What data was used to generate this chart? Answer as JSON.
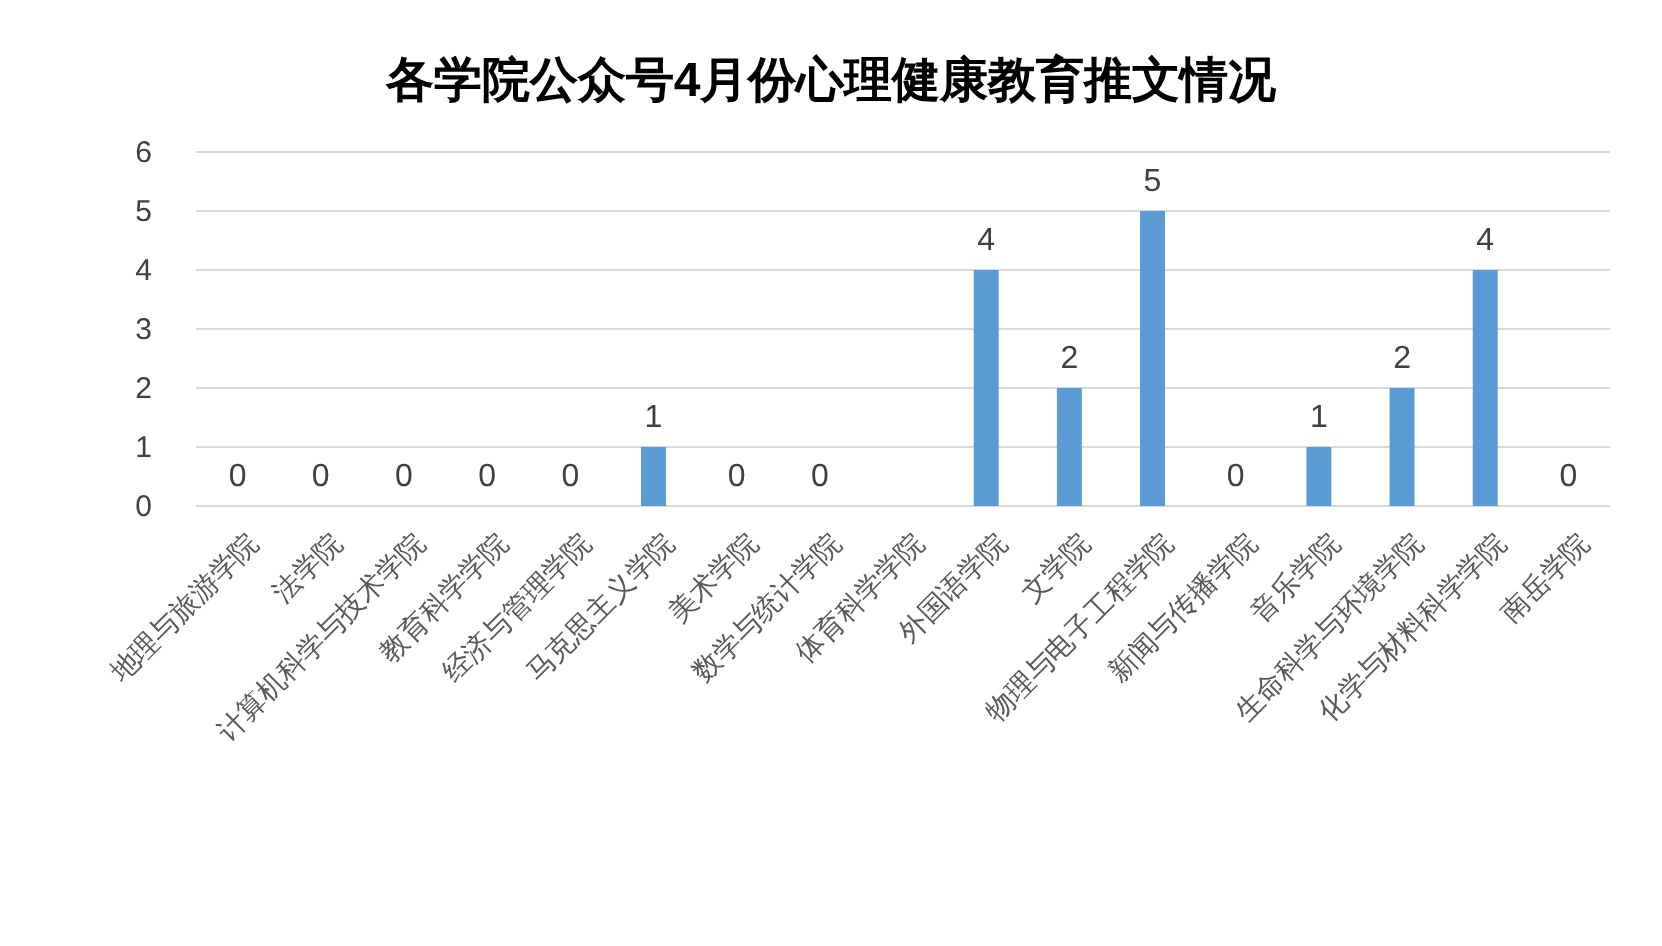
{
  "chart_data": {
    "type": "bar",
    "title": "各学院公众号4月份心理健康教育推文情况",
    "categories": [
      "地理与旅游学院",
      "法学院",
      "计算机科学与技术学院",
      "教育科学学院",
      "经济与管理学院",
      "马克思主义学院",
      "美术学院",
      "数学与统计学院",
      "体育科学学院",
      "外国语学院",
      "文学院",
      "物理与电子工程学院",
      "新闻与传播学院",
      "音乐学院",
      "生命科学与环境学院",
      "化学与材料科学学院",
      "南岳学院"
    ],
    "values": [
      0,
      0,
      0,
      0,
      0,
      1,
      0,
      0,
      0,
      4,
      2,
      5,
      0,
      1,
      2,
      4,
      0
    ],
    "value_labels": [
      "0",
      "0",
      "0",
      "0",
      "0",
      "1",
      "0",
      "0",
      null,
      "4",
      "2",
      "5",
      "0",
      "1",
      "2",
      "4",
      "0"
    ],
    "color": "#5b9bd5",
    "ylim": [
      0,
      6
    ],
    "yticks": [
      0,
      1,
      2,
      3,
      4,
      5,
      6
    ],
    "grid": "y"
  }
}
